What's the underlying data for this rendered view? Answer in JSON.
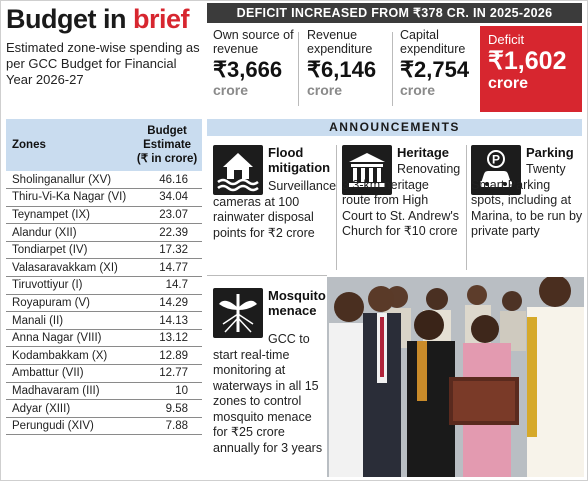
{
  "header": {
    "title_part1": "Budget in ",
    "title_part2": "brief",
    "subtitle": "Estimated zone-wise spending as per GCC Budget for Financial Year 2026-27"
  },
  "table": {
    "col_zone": "Zones",
    "col_estimate": "Budget Estimate (₹ in crore)",
    "rows": [
      {
        "zone": "Sholinganallur (XV)",
        "value": "46.16"
      },
      {
        "zone": "Thiru-Vi-Ka Nagar (VI)",
        "value": "34.04"
      },
      {
        "zone": "Teynampet (IX)",
        "value": "23.07"
      },
      {
        "zone": "Alandur (XII)",
        "value": "22.39"
      },
      {
        "zone": "Tondiarpet (IV)",
        "value": "17.32"
      },
      {
        "zone": "Valasaravakkam (XI)",
        "value": "14.77"
      },
      {
        "zone": "Tiruvottiyur (I)",
        "value": "14.7"
      },
      {
        "zone": "Royapuram (V)",
        "value": "14.29"
      },
      {
        "zone": "Manali (II)",
        "value": "14.13"
      },
      {
        "zone": "Anna Nagar (VIII)",
        "value": "13.12"
      },
      {
        "zone": "Kodambakkam (X)",
        "value": "12.89"
      },
      {
        "zone": "Ambattur (VII)",
        "value": "12.77"
      },
      {
        "zone": "Madhavaram (III)",
        "value": "10"
      },
      {
        "zone": "Adyar (XIII)",
        "value": "9.58"
      },
      {
        "zone": "Perungudi (XIV)",
        "value": "7.88"
      }
    ]
  },
  "deficit_banner": "DEFICIT INCREASED FROM ₹378 CR. IN 2025-2026",
  "stats": {
    "own": {
      "label": "Own source of revenue",
      "value": "₹3,666",
      "unit": "crore"
    },
    "revexp": {
      "label": "Revenue expenditure",
      "value": "₹6,146",
      "unit": "crore"
    },
    "capexp": {
      "label": "Capital expenditure",
      "value": "₹2,754",
      "unit": "crore"
    },
    "deficit": {
      "label": "Deficit",
      "value": "₹1,602",
      "unit": "crore"
    }
  },
  "announcements": {
    "title": "ANNOUNCEMENTS",
    "flood": {
      "icon": "flooded-house-icon",
      "heading": "Flood mitigation",
      "body": "Surveillance cameras at 100 rainwater disposal points for ₹2 crore"
    },
    "heritage": {
      "icon": "heritage-building-icon",
      "heading": "Heritage",
      "body": "Renovating 3.3-km heritage route from High Court to St. Andrew's Church for ₹10 crore"
    },
    "parking": {
      "icon": "parking-car-icon",
      "heading": "Parking",
      "body": "Twenty Smart Parking spots, including at Marina, to be run by private party"
    },
    "mosquito": {
      "icon": "mosquito-icon",
      "heading": "Mosquito menace",
      "body": "GCC to start real-time monitoring at waterways in all 15 zones to control mosquito menace for ₹25 crore annually for 3 years"
    }
  },
  "colors": {
    "accent_red": "#d7262f",
    "header_blue": "#c9dcef",
    "dark_bar": "#3b3b3b"
  }
}
